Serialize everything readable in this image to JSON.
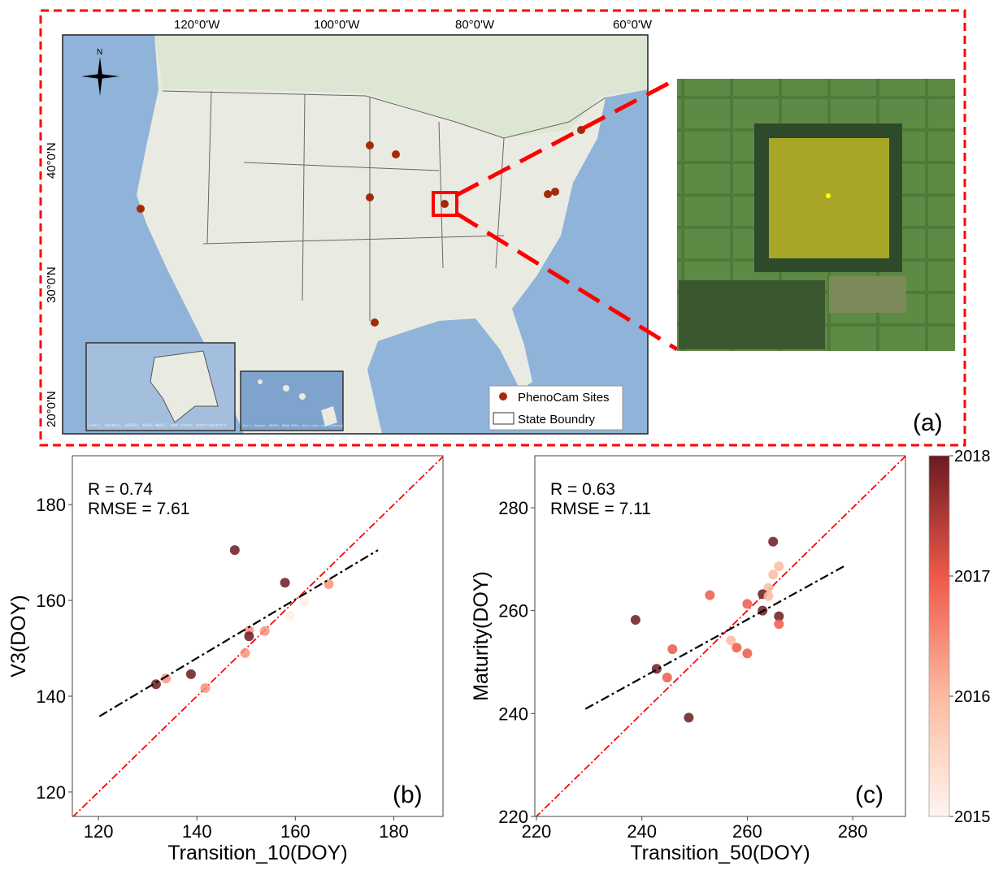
{
  "panel_labels": {
    "a": "(a)",
    "b": "(b)",
    "c": "(c)"
  },
  "map": {
    "lon_labels": [
      "120°0'W",
      "100°0'W",
      "80°0'W",
      "60°0'W"
    ],
    "lat_labels": [
      "40°0'N",
      "30°0'N",
      "20°0'N"
    ],
    "north_label": "N",
    "legend": {
      "sites": "PhenoCam Sites",
      "boundary": "State Boundry"
    },
    "site_color": "#a52a0a",
    "inset_credit": "Esri, Garmin, GEBCO, NOAA NGDC, and other contributors",
    "site_count": 9
  },
  "chart_data": [
    {
      "type": "scatter",
      "panel": "(b)",
      "xlabel": "Transition_10(DOY)",
      "ylabel": "V3(DOY)",
      "xlim": [
        114.7,
        190
      ],
      "ylim": [
        114.9,
        190.2
      ],
      "xticks": [
        120,
        140,
        160,
        180
      ],
      "yticks": [
        120,
        140,
        160,
        180
      ],
      "annotations": [
        "R = 0.74",
        "RMSE = 7.61"
      ],
      "points": [
        {
          "x": 147.7,
          "y": 170.5,
          "year": 2018
        },
        {
          "x": 157.9,
          "y": 163.7,
          "year": 2018
        },
        {
          "x": 166.8,
          "y": 163.4,
          "year": 2016.4
        },
        {
          "x": 161.8,
          "y": 159.7,
          "year": 2015.1
        },
        {
          "x": 158.9,
          "y": 156.8,
          "year": 2015.1
        },
        {
          "x": 150.6,
          "y": 153.7,
          "year": 2016.4
        },
        {
          "x": 150.6,
          "y": 152.5,
          "year": 2018
        },
        {
          "x": 153.8,
          "y": 153.6,
          "year": 2016.4
        },
        {
          "x": 149.8,
          "y": 149.0,
          "year": 2016.4
        },
        {
          "x": 138.8,
          "y": 144.6,
          "year": 2018
        },
        {
          "x": 133.7,
          "y": 143.7,
          "year": 2016.4
        },
        {
          "x": 131.7,
          "y": 142.5,
          "year": 2018
        },
        {
          "x": 141.7,
          "y": 141.7,
          "year": 2016.4
        }
      ],
      "fit_line": {
        "x": [
          120.2,
          176.8
        ],
        "y": [
          135.8,
          170.5
        ]
      },
      "one_to_one": true
    },
    {
      "type": "scatter",
      "panel": "(c)",
      "xlabel": "Transition_50(DOY)",
      "ylabel": "Maturity(DOY)",
      "xlim": [
        219.7,
        290
      ],
      "ylim": [
        220,
        290.1
      ],
      "xticks": [
        220,
        240,
        260,
        280
      ],
      "yticks": [
        220,
        240,
        260,
        280
      ],
      "annotations": [
        "R = 0.63",
        "RMSE = 7.11"
      ],
      "points": [
        {
          "x": 264.9,
          "y": 273.4,
          "year": 2018
        },
        {
          "x": 266.0,
          "y": 268.6,
          "year": 2016
        },
        {
          "x": 264.9,
          "y": 267.0,
          "year": 2016
        },
        {
          "x": 264.0,
          "y": 264.4,
          "year": 2016
        },
        {
          "x": 262.9,
          "y": 263.2,
          "year": 2018
        },
        {
          "x": 264.0,
          "y": 262.8,
          "year": 2016
        },
        {
          "x": 252.9,
          "y": 263.0,
          "year": 2017
        },
        {
          "x": 260.0,
          "y": 261.3,
          "year": 2017
        },
        {
          "x": 262.9,
          "y": 260.0,
          "year": 2018
        },
        {
          "x": 266.0,
          "y": 258.9,
          "year": 2018
        },
        {
          "x": 266.0,
          "y": 257.4,
          "year": 2017
        },
        {
          "x": 238.8,
          "y": 258.2,
          "year": 2018
        },
        {
          "x": 245.8,
          "y": 252.5,
          "year": 2017
        },
        {
          "x": 256.9,
          "y": 254.2,
          "year": 2016
        },
        {
          "x": 258.0,
          "y": 252.8,
          "year": 2017
        },
        {
          "x": 259.0,
          "y": 251.3,
          "year": 2015
        },
        {
          "x": 260.0,
          "y": 251.7,
          "year": 2017
        },
        {
          "x": 242.8,
          "y": 248.7,
          "year": 2018
        },
        {
          "x": 244.8,
          "y": 247.0,
          "year": 2017
        },
        {
          "x": 248.9,
          "y": 239.2,
          "year": 2018
        }
      ],
      "fit_line": {
        "x": [
          229.3,
          278.3
        ],
        "y": [
          240.9,
          268.6
        ]
      },
      "one_to_one": true
    }
  ],
  "colorbar": {
    "min": 2015,
    "max": 2018,
    "ticks": [
      "2015",
      "2016",
      "2017",
      "2018"
    ],
    "colors": [
      "#fff5f0",
      "#fcbba1",
      "#ef3b2c",
      "#67000d"
    ]
  }
}
